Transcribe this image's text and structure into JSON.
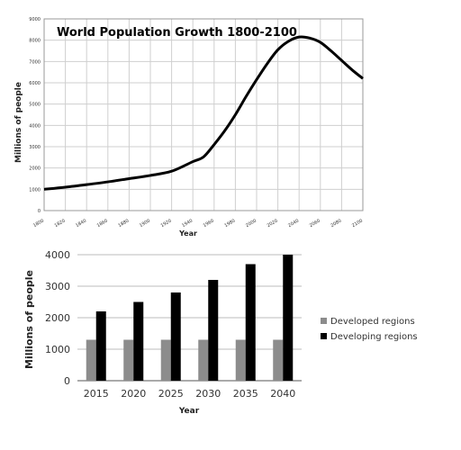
{
  "chart_data": [
    {
      "type": "line",
      "title": "World Population Growth 1800-2100",
      "xlabel": "Year",
      "ylabel": "Millions of people",
      "xlim": [
        1800,
        2100
      ],
      "ylim": [
        0,
        9000
      ],
      "x_ticks": [
        "1800",
        "1820",
        "1840",
        "1860",
        "1880",
        "1900",
        "1920",
        "1940",
        "1960",
        "1980",
        "2000",
        "2020",
        "2040",
        "2060",
        "2080",
        "2100"
      ],
      "y_ticks": [
        "0",
        "1000",
        "2000",
        "3000",
        "4000",
        "5000",
        "6000",
        "7000",
        "8000",
        "9000"
      ],
      "grid": true,
      "series": [
        {
          "x": [
            1800,
            1820,
            1840,
            1860,
            1880,
            1900,
            1920,
            1940,
            1950,
            1960,
            1970,
            1980,
            1990,
            2000,
            2010,
            2020,
            2030,
            2040,
            2050,
            2060,
            2070,
            2080,
            2090,
            2100
          ],
          "y": [
            1000,
            1100,
            1220,
            1350,
            1500,
            1650,
            1850,
            2300,
            2520,
            3100,
            3750,
            4500,
            5350,
            6150,
            6900,
            7550,
            7950,
            8150,
            8100,
            7900,
            7500,
            7050,
            6600,
            6200
          ]
        }
      ],
      "colors": {
        "line": "#000000",
        "grid": "#cfcfcf",
        "axis": "#999999"
      }
    },
    {
      "type": "bar",
      "xlabel": "Year",
      "ylabel": "Millions of people",
      "ylim": [
        0,
        4000
      ],
      "categories": [
        "2015",
        "2020",
        "2025",
        "2030",
        "2035",
        "2040"
      ],
      "y_ticks": [
        "0",
        "1000",
        "2000",
        "3000",
        "4000"
      ],
      "grid": true,
      "legend_position": "right",
      "series": [
        {
          "name": "Developed regions",
          "values": [
            1300,
            1300,
            1300,
            1300,
            1300,
            1300
          ],
          "color": "#8c8c8c"
        },
        {
          "name": "Developing regions",
          "values": [
            2200,
            2500,
            2800,
            3200,
            3700,
            4000
          ],
          "color": "#000000"
        }
      ]
    }
  ]
}
